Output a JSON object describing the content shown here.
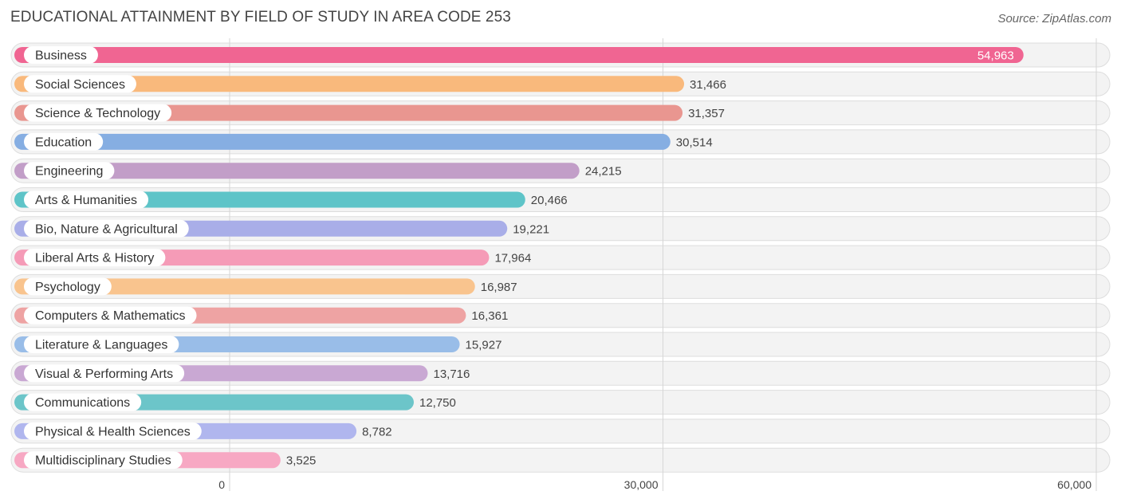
{
  "chart_data": {
    "type": "bar",
    "orientation": "horizontal",
    "title": "EDUCATIONAL ATTAINMENT BY FIELD OF STUDY IN AREA CODE 253",
    "source": "Source: ZipAtlas.com",
    "categories": [
      "Business",
      "Social Sciences",
      "Science & Technology",
      "Education",
      "Engineering",
      "Arts & Humanities",
      "Bio, Nature & Agricultural",
      "Liberal Arts & History",
      "Psychology",
      "Computers & Mathematics",
      "Literature & Languages",
      "Visual & Performing Arts",
      "Communications",
      "Physical & Health Sciences",
      "Multidisciplinary Studies"
    ],
    "values": [
      54963,
      31466,
      31357,
      30514,
      24215,
      20466,
      19221,
      17964,
      16987,
      16361,
      15927,
      13716,
      12750,
      8782,
      3525
    ],
    "value_labels": [
      "54,963",
      "31,466",
      "31,357",
      "30,514",
      "24,215",
      "20,466",
      "19,221",
      "17,964",
      "16,987",
      "16,361",
      "15,927",
      "13,716",
      "12,750",
      "8,782",
      "3,525"
    ],
    "colors": [
      "#f06592",
      "#f9b97c",
      "#e99690",
      "#86aee2",
      "#c29ec8",
      "#5ec4c8",
      "#a9aee8",
      "#f59bb7",
      "#f9c48e",
      "#eea3a3",
      "#99bde8",
      "#c9a8d3",
      "#6cc5c9",
      "#b0b6ee",
      "#f7a8c3"
    ],
    "xlim": [
      0,
      60000
    ],
    "xticks": [
      0,
      30000,
      60000
    ],
    "xtick_labels": [
      "0",
      "30,000",
      "60,000"
    ],
    "grid": true
  }
}
